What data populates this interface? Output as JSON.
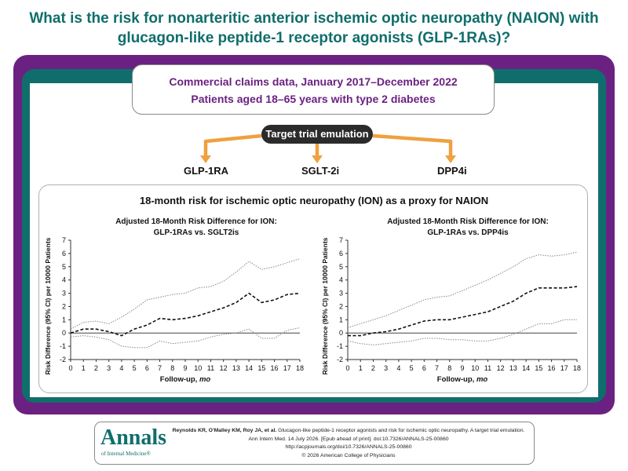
{
  "title": {
    "line1": "What is the risk for nonarteritic anterior ischemic optic neuropathy (NAION) with",
    "line2": "glucagon-like peptide-1 receptor agonists (GLP-1RAs)?"
  },
  "claims": {
    "line1": "Commercial claims data, January 2017–December 2022",
    "line2": "Patients aged 18–65 years with type 2 diabetes"
  },
  "tte_label": "Target trial emulation",
  "arms": [
    "GLP-1RA",
    "SGLT-2i",
    "DPP4i"
  ],
  "results_title": "18-month risk for ischemic optic neuropathy (ION) as a proxy for NAION",
  "colors": {
    "teal": "#0f6e6b",
    "purple": "#6b2182",
    "orange": "#f0a040",
    "dark": "#2b2b2b"
  },
  "chart_data": [
    {
      "type": "line",
      "title_line1": "Adjusted 18-Month Risk Difference for ION:",
      "title_line2": "GLP-1RAs vs. SGLT2is",
      "xlabel_text": "Follow-up, ",
      "xlabel_unit": "mo",
      "ylabel": "Risk Difference (95% CI) per 10000 Patients",
      "x_ticks": [
        0,
        1,
        2,
        3,
        4,
        5,
        6,
        7,
        8,
        9,
        10,
        11,
        12,
        13,
        14,
        15,
        16,
        17,
        18
      ],
      "y_ticks": [
        -2,
        -1,
        0,
        1,
        2,
        3,
        4,
        5,
        6,
        7
      ],
      "xlim": [
        0,
        18
      ],
      "ylim": [
        -2,
        7
      ],
      "x": [
        0,
        1,
        2,
        3,
        4,
        5,
        6,
        7,
        8,
        9,
        10,
        11,
        12,
        13,
        14,
        15,
        16,
        17,
        18
      ],
      "series": [
        {
          "role": "estimate",
          "values": [
            0,
            0.3,
            0.3,
            0.1,
            -0.2,
            0.3,
            0.6,
            1.1,
            1.0,
            1.1,
            1.3,
            1.6,
            1.9,
            2.3,
            3.0,
            2.3,
            2.5,
            2.9,
            3.0
          ]
        },
        {
          "role": "upper",
          "values": [
            0.3,
            0.8,
            0.9,
            0.7,
            1.2,
            1.8,
            2.5,
            2.7,
            2.9,
            3.0,
            3.4,
            3.5,
            3.9,
            4.6,
            5.4,
            4.8,
            5.0,
            5.3,
            5.6
          ]
        },
        {
          "role": "lower",
          "values": [
            -0.3,
            -0.2,
            -0.3,
            -0.5,
            -1.0,
            -1.1,
            -1.1,
            -0.6,
            -0.8,
            -0.7,
            -0.6,
            -0.3,
            -0.1,
            0.0,
            0.3,
            -0.4,
            -0.4,
            0.2,
            0.4
          ]
        }
      ]
    },
    {
      "type": "line",
      "title_line1": "Adjusted 18-Month Risk Difference for ION:",
      "title_line2": "GLP-1RAs vs. DPP4is",
      "xlabel_text": "Follow-up, ",
      "xlabel_unit": "mo",
      "ylabel": "Risk Difference (95% CI) per 10000 Patients",
      "x_ticks": [
        0,
        1,
        2,
        3,
        4,
        5,
        6,
        7,
        8,
        9,
        10,
        11,
        12,
        13,
        14,
        15,
        16,
        17,
        18
      ],
      "y_ticks": [
        -2,
        -1,
        0,
        1,
        2,
        3,
        4,
        5,
        6,
        7
      ],
      "xlim": [
        0,
        18
      ],
      "ylim": [
        -2,
        7
      ],
      "x": [
        0,
        1,
        2,
        3,
        4,
        5,
        6,
        7,
        8,
        9,
        10,
        11,
        12,
        13,
        14,
        15,
        16,
        17,
        18
      ],
      "series": [
        {
          "role": "estimate",
          "values": [
            -0.2,
            -0.2,
            0.0,
            0.1,
            0.3,
            0.6,
            0.9,
            1.0,
            1.0,
            1.2,
            1.4,
            1.6,
            2.0,
            2.4,
            3.0,
            3.4,
            3.4,
            3.4,
            3.5
          ]
        },
        {
          "role": "upper",
          "values": [
            0.4,
            0.7,
            1.0,
            1.3,
            1.7,
            2.1,
            2.5,
            2.7,
            2.8,
            3.2,
            3.6,
            4.0,
            4.5,
            5.0,
            5.6,
            5.9,
            5.8,
            5.9,
            6.1
          ]
        },
        {
          "role": "lower",
          "values": [
            -0.6,
            -0.8,
            -0.9,
            -0.8,
            -0.7,
            -0.6,
            -0.4,
            -0.4,
            -0.5,
            -0.5,
            -0.6,
            -0.6,
            -0.4,
            -0.1,
            0.3,
            0.7,
            0.7,
            1.0,
            1.0
          ]
        }
      ]
    }
  ],
  "footer": {
    "logo_main": "Annals",
    "logo_sub": "of Internal Medicine®",
    "citation_authors": "Reynolds KR, O'Malley KM, Roy JA, et al.",
    "citation_title": " Glucagon-like peptide-1 receptor agonists and risk for ischemic optic neuropathy. A target trial emulation.",
    "citation_journal": "Ann Intern Med. 14 July 2026. [Epub ahead of print]. doi:10.7326/ANNALS-25-00860",
    "citation_url": "http://acpjournals.org/doi/10.7326/ANNALS-25-00860",
    "copyright": "© 2026 American College of Physicians"
  }
}
